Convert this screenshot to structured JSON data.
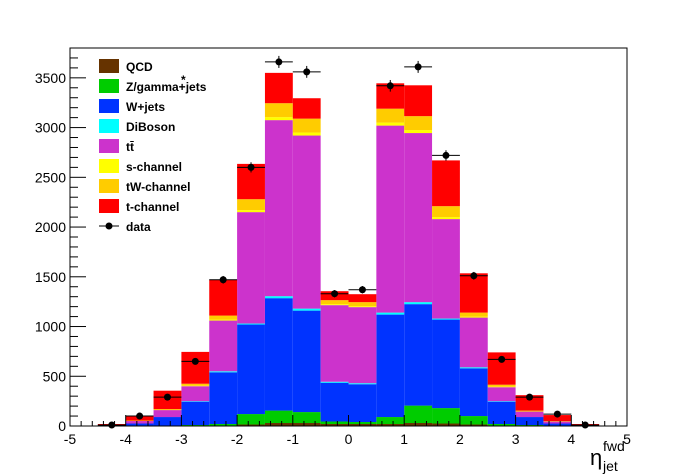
{
  "chart_data": {
    "type": "bar",
    "stacked": true,
    "xlabel_main": "η",
    "xlabel_sup": "fwd",
    "xlabel_sub": "jet",
    "xlim": [
      -5,
      5
    ],
    "ylim": [
      0,
      3800
    ],
    "x_ticks": [
      -5,
      -4,
      -3,
      -2,
      -1,
      0,
      1,
      2,
      3,
      4,
      5
    ],
    "y_ticks": [
      0,
      500,
      1000,
      1500,
      2000,
      2500,
      3000,
      3500
    ],
    "bin_edges": [
      -4.5,
      -4.0,
      -3.5,
      -3.0,
      -2.5,
      -2.0,
      -1.5,
      -1.0,
      -0.5,
      0.0,
      0.5,
      1.0,
      1.5,
      2.0,
      2.5,
      3.0,
      3.5,
      4.0,
      4.5
    ],
    "series": [
      {
        "name": "QCD",
        "color": "#663300",
        "values": [
          0,
          0,
          0,
          0,
          0,
          15,
          30,
          30,
          20,
          20,
          20,
          30,
          25,
          15,
          0,
          0,
          0,
          0
        ]
      },
      {
        "name": "Z/gamma*+jets",
        "color": "#00cc00",
        "values": [
          0,
          0,
          0,
          10,
          20,
          105,
          125,
          110,
          25,
          20,
          70,
          175,
          155,
          85,
          20,
          10,
          0,
          0
        ]
      },
      {
        "name": "W+jets",
        "color": "#0033ff",
        "values": [
          5,
          25,
          90,
          235,
          520,
          900,
          1130,
          1020,
          390,
          380,
          1030,
          1020,
          890,
          480,
          225,
          80,
          25,
          5
        ]
      },
      {
        "name": "DiBoson",
        "color": "#00ffff",
        "values": [
          0,
          0,
          0,
          5,
          10,
          10,
          20,
          20,
          10,
          10,
          20,
          20,
          10,
          10,
          5,
          0,
          0,
          0
        ]
      },
      {
        "name": "tt̄",
        "color": "#cc33cc",
        "values": [
          5,
          25,
          70,
          150,
          510,
          1120,
          1770,
          1740,
          770,
          765,
          1880,
          1700,
          1000,
          500,
          140,
          55,
          20,
          5
        ]
      },
      {
        "name": "s-channel",
        "color": "#ffff00",
        "values": [
          0,
          0,
          0,
          5,
          10,
          20,
          30,
          30,
          10,
          10,
          30,
          30,
          20,
          10,
          5,
          0,
          0,
          0
        ]
      },
      {
        "name": "tW-channel",
        "color": "#ffcc00",
        "values": [
          0,
          5,
          10,
          20,
          40,
          110,
          140,
          140,
          40,
          40,
          140,
          140,
          110,
          40,
          20,
          10,
          5,
          0
        ]
      },
      {
        "name": "t-channel",
        "color": "#ff0000",
        "values": [
          10,
          45,
          185,
          320,
          360,
          355,
          305,
          205,
          90,
          80,
          255,
          310,
          460,
          395,
          325,
          155,
          60,
          10
        ]
      }
    ],
    "data": {
      "name": "data",
      "color": "#000000",
      "values": [
        10,
        100,
        290,
        650,
        1470,
        2600,
        3660,
        3560,
        1330,
        1370,
        3420,
        3610,
        2720,
        1510,
        670,
        290,
        120,
        10
      ]
    }
  },
  "legend_entries": [
    {
      "label": "QCD",
      "color": "#663300",
      "kind": "box"
    },
    {
      "label": "Z/gamma+jets",
      "star": "*",
      "color": "#00cc00",
      "kind": "box"
    },
    {
      "label": "W+jets",
      "color": "#0033ff",
      "kind": "box"
    },
    {
      "label": "DiBoson",
      "color": "#00ffff",
      "kind": "box"
    },
    {
      "label": "tt̄",
      "color": "#cc33cc",
      "kind": "box"
    },
    {
      "label": "s-channel",
      "color": "#ffff00",
      "kind": "box"
    },
    {
      "label": "tW-channel",
      "color": "#ffcc00",
      "kind": "box"
    },
    {
      "label": "t-channel",
      "color": "#ff0000",
      "kind": "box"
    },
    {
      "label": "data",
      "color": "#000000",
      "kind": "marker"
    }
  ]
}
